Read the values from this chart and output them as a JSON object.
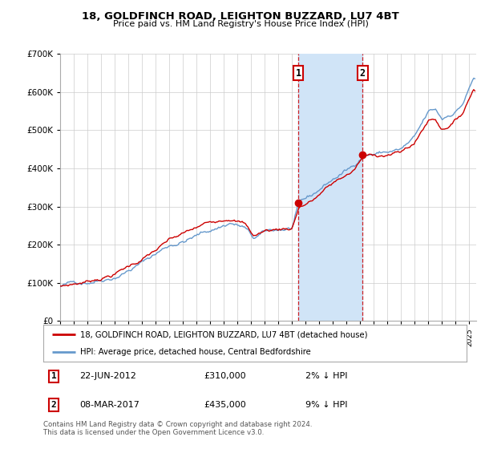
{
  "title": "18, GOLDFINCH ROAD, LEIGHTON BUZZARD, LU7 4BT",
  "subtitle": "Price paid vs. HM Land Registry's House Price Index (HPI)",
  "ylim": [
    0,
    700000
  ],
  "xlim_start": 1995.0,
  "xlim_end": 2025.5,
  "sale1_date": 2012.47,
  "sale1_price": 310000,
  "sale2_date": 2017.18,
  "sale2_price": 435000,
  "line1_color": "#cc0000",
  "line2_color": "#6699cc",
  "shade_color": "#d0e4f7",
  "vline_color": "#cc0000",
  "marker_color": "#cc0000",
  "legend1_label": "18, GOLDFINCH ROAD, LEIGHTON BUZZARD, LU7 4BT (detached house)",
  "legend2_label": "HPI: Average price, detached house, Central Bedfordshire",
  "footnote": "Contains HM Land Registry data © Crown copyright and database right 2024.\nThis data is licensed under the Open Government Licence v3.0.",
  "background_color": "#ffffff",
  "grid_color": "#cccccc",
  "hpi_seed": 42,
  "prop_seed": 7
}
